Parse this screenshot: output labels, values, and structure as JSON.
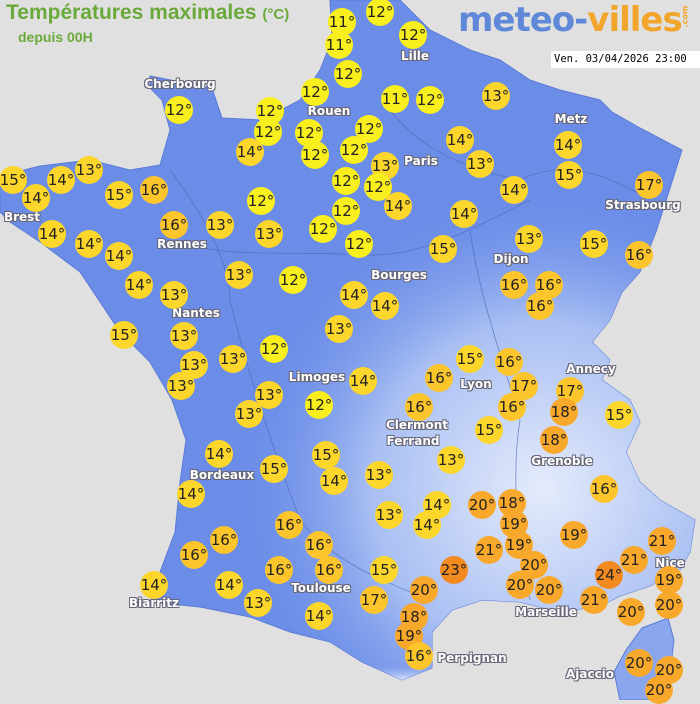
{
  "header": {
    "title": "Températures maximales",
    "unit": "(°C)",
    "subtitle": "depuis 00H",
    "brand_part1": "meteo-",
    "brand_part2": "villes",
    "brand_domain": ".com",
    "timestamp": "Ven. 03/04/2026 23:00"
  },
  "colors": {
    "background": "#e1e0e1",
    "land": "#6b8de8",
    "title_green": "#6aaa3a",
    "brand_blue": "#5f88d8",
    "brand_orange": "#f1a52b",
    "temp_11_12": "#f9ee1e",
    "temp_13_15": "#fcd62a",
    "temp_16_17": "#fbc52b",
    "temp_18_21": "#f8a82a",
    "temp_23_24": "#f28a1f"
  },
  "cities": [
    "Cherbourg",
    "Lille",
    "Rouen",
    "Paris",
    "Metz",
    "Strasbourg",
    "Brest",
    "Rennes",
    "Nantes",
    "Dijon",
    "Bourges",
    "Limoges",
    "Annecy",
    "Lyon",
    "Clermont",
    "Ferrand",
    "Grenoble",
    "Bordeaux",
    "Nice",
    "Toulouse",
    "Biarritz",
    "Marseille",
    "Perpignan",
    "Ajaccio"
  ],
  "temperatures": [
    12,
    11,
    12,
    11,
    12,
    12,
    12,
    12,
    12,
    12,
    12,
    11,
    12,
    13,
    14,
    12,
    12,
    13,
    14,
    13,
    14,
    15,
    17,
    15,
    14,
    14,
    13,
    15,
    16,
    12,
    12,
    14,
    14,
    12,
    12,
    16,
    13,
    14,
    14,
    14,
    13,
    12,
    12,
    14,
    13,
    15,
    16,
    15,
    14,
    13,
    13,
    12,
    16,
    16,
    16,
    14,
    14,
    15,
    13,
    13,
    13,
    13,
    12,
    15,
    16,
    13,
    17,
    16,
    17,
    18,
    15,
    14,
    16,
    16,
    13,
    13,
    12,
    15,
    18,
    14,
    15,
    15,
    14,
    13,
    13,
    16,
    14,
    20,
    18,
    14,
    14,
    13,
    19,
    16,
    19,
    16,
    16,
    16,
    19,
    21,
    20,
    20,
    21,
    21,
    19,
    23,
    15,
    16,
    16,
    20,
    24,
    21,
    20,
    20,
    14,
    14,
    20,
    13,
    17,
    14,
    18,
    19,
    16,
    20,
    20,
    20
  ],
  "degree_symbol": "°"
}
